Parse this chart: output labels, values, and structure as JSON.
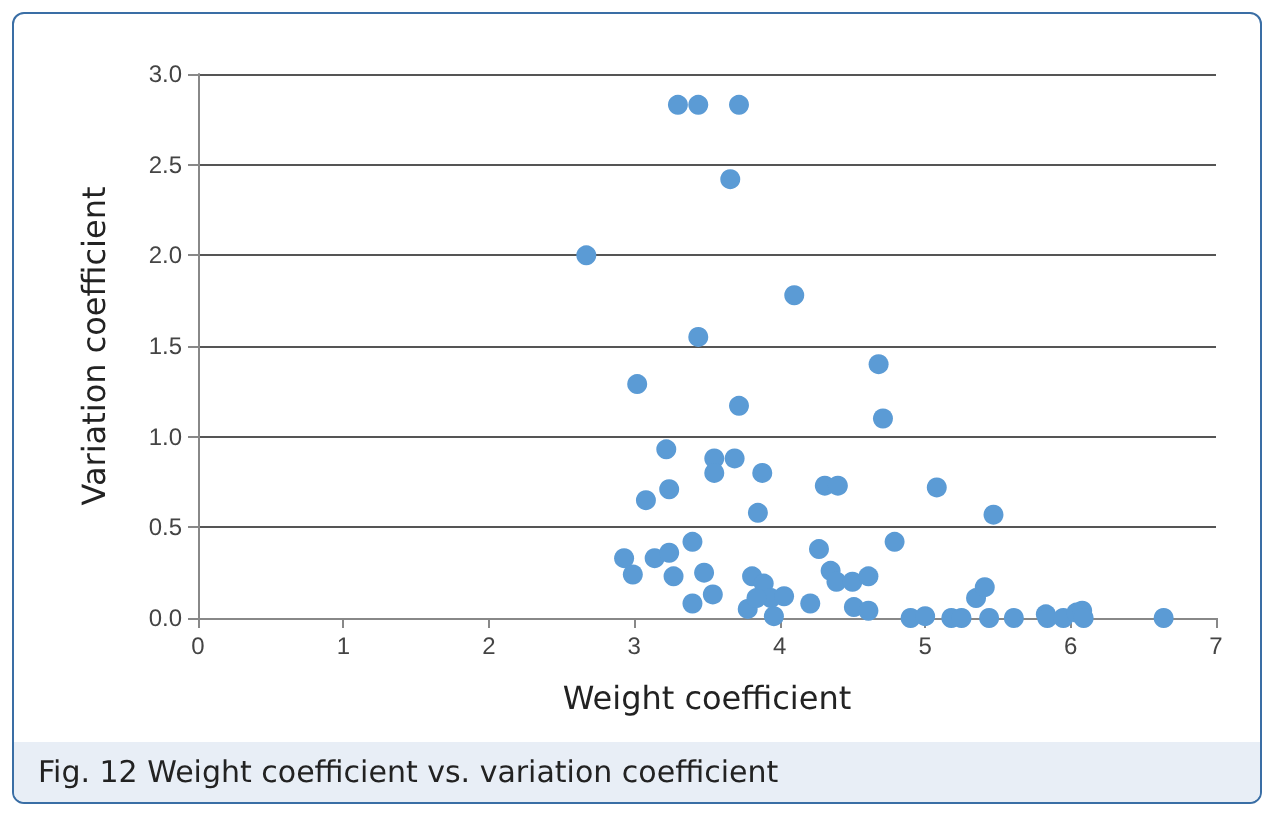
{
  "chart_data": {
    "type": "scatter",
    "title": "Fig. 12 Weight coefficient vs. variation coefficient",
    "xlabel": "Weight coefficient",
    "ylabel": "Variation coefficient",
    "x": [
      3.3,
      3.44,
      3.72,
      3.66,
      2.67,
      4.1,
      3.44,
      4.68,
      4.71,
      3.02,
      3.72,
      3.22,
      3.55,
      3.69,
      3.88,
      3.55,
      4.31,
      4.4,
      5.08,
      3.08,
      3.24,
      3.85,
      5.47,
      4.79,
      3.4,
      2.93,
      3.14,
      3.24,
      2.99,
      3.27,
      3.48,
      3.81,
      3.89,
      4.27,
      4.35,
      4.39,
      4.5,
      4.61,
      3.54,
      3.4,
      3.78,
      3.94,
      4.03,
      3.84,
      3.96,
      4.21,
      4.51,
      4.61,
      4.9,
      5.0,
      5.18,
      5.25,
      5.35,
      5.41,
      5.44,
      5.61,
      5.83,
      5.84,
      5.95,
      6.04,
      6.08,
      6.09,
      6.64
    ],
    "series": [
      {
        "color": "#5b9bd5",
        "values": [
          2.83,
          2.83,
          2.83,
          2.42,
          2.0,
          1.78,
          1.55,
          1.4,
          1.1,
          1.29,
          1.17,
          0.93,
          0.88,
          0.88,
          0.8,
          0.8,
          0.73,
          0.73,
          0.72,
          0.65,
          0.71,
          0.58,
          0.57,
          0.42,
          0.42,
          0.33,
          0.33,
          0.36,
          0.24,
          0.23,
          0.25,
          0.23,
          0.19,
          0.38,
          0.26,
          0.2,
          0.2,
          0.23,
          0.13,
          0.08,
          0.05,
          0.11,
          0.12,
          0.11,
          0.01,
          0.08,
          0.06,
          0.04,
          0.0,
          0.01,
          0.0,
          0.0,
          0.11,
          0.17,
          0.0,
          0.0,
          0.02,
          0.0,
          0.0,
          0.03,
          0.04,
          0.0,
          0.0
        ]
      }
    ],
    "xlim": [
      0,
      7
    ],
    "xticks": [
      0,
      1,
      2,
      3,
      4,
      5,
      6,
      7
    ],
    "ylim": [
      0,
      3
    ],
    "yticks": [
      {
        "value": 0,
        "label": "0.0"
      },
      {
        "value": 0.5,
        "label": "0.5"
      },
      {
        "value": 1,
        "label": "1.0"
      },
      {
        "value": 1.5,
        "label": "1.5"
      },
      {
        "value": 2,
        "label": "2.0"
      },
      {
        "value": 2.5,
        "label": "2.5"
      },
      {
        "value": 3,
        "label": "3.0"
      }
    ],
    "grid": "y",
    "marker": "circle"
  }
}
